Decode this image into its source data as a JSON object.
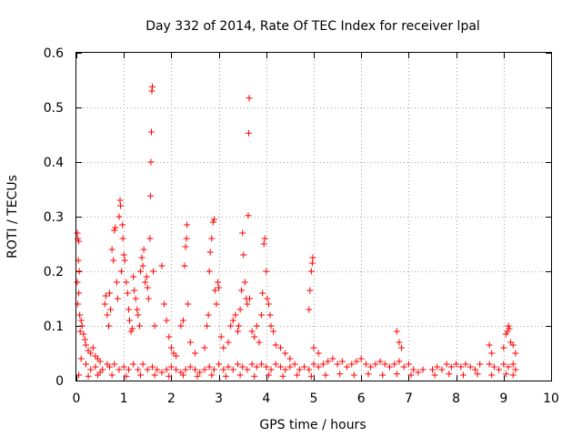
{
  "chart_data": {
    "type": "scatter",
    "title": "Day 332 of 2014, Rate Of TEC Index for receiver lpal",
    "xlabel": "GPS time / hours",
    "ylabel": "ROTI / TECUs",
    "xlim": [
      0,
      10
    ],
    "ylim": [
      0,
      0.6
    ],
    "xticks": [
      0,
      1,
      2,
      3,
      4,
      5,
      6,
      7,
      8,
      9,
      10
    ],
    "yticks": [
      0,
      0.1,
      0.2,
      0.3,
      0.4,
      0.5,
      0.6
    ],
    "xtick_labels": [
      "0",
      "1",
      "2",
      "3",
      "4",
      "5",
      "6",
      "7",
      "8",
      "9",
      "10"
    ],
    "ytick_labels": [
      "0",
      "0.1",
      "0.2",
      "0.3",
      "0.4",
      "0.5",
      "0.6"
    ],
    "grid": true,
    "marker": "+",
    "marker_color": "#ff0000",
    "series": [
      {
        "name": "ROTI",
        "points": [
          [
            0.02,
            0.27
          ],
          [
            0.03,
            0.26
          ],
          [
            0.05,
            0.255
          ],
          [
            0.04,
            0.22
          ],
          [
            0.06,
            0.2
          ],
          [
            0.02,
            0.18
          ],
          [
            0.05,
            0.16
          ],
          [
            0.03,
            0.14
          ],
          [
            0.07,
            0.12
          ],
          [
            0.1,
            0.11
          ],
          [
            0.12,
            0.1
          ],
          [
            0.15,
            0.085
          ],
          [
            0.18,
            0.075
          ],
          [
            0.08,
            0.09
          ],
          [
            0.2,
            0.065
          ],
          [
            0.25,
            0.055
          ],
          [
            0.3,
            0.05
          ],
          [
            0.35,
            0.06
          ],
          [
            0.4,
            0.045
          ],
          [
            0.45,
            0.04
          ],
          [
            0.5,
            0.035
          ],
          [
            0.6,
            0.14
          ],
          [
            0.62,
            0.155
          ],
          [
            0.65,
            0.12
          ],
          [
            0.68,
            0.1
          ],
          [
            0.7,
            0.16
          ],
          [
            0.72,
            0.13
          ],
          [
            0.75,
            0.24
          ],
          [
            0.78,
            0.22
          ],
          [
            0.8,
            0.275
          ],
          [
            0.82,
            0.28
          ],
          [
            0.85,
            0.18
          ],
          [
            0.87,
            0.15
          ],
          [
            0.9,
            0.3
          ],
          [
            0.92,
            0.33
          ],
          [
            0.93,
            0.32
          ],
          [
            0.95,
            0.2
          ],
          [
            0.97,
            0.285
          ],
          [
            0.98,
            0.26
          ],
          [
            1.0,
            0.23
          ],
          [
            1.02,
            0.22
          ],
          [
            1.05,
            0.18
          ],
          [
            1.08,
            0.16
          ],
          [
            1.1,
            0.13
          ],
          [
            1.12,
            0.11
          ],
          [
            1.15,
            0.09
          ],
          [
            1.18,
            0.095
          ],
          [
            1.2,
            0.19
          ],
          [
            1.22,
            0.165
          ],
          [
            1.25,
            0.15
          ],
          [
            1.28,
            0.13
          ],
          [
            1.3,
            0.12
          ],
          [
            1.33,
            0.1
          ],
          [
            1.35,
            0.2
          ],
          [
            1.38,
            0.225
          ],
          [
            1.4,
            0.21
          ],
          [
            1.42,
            0.24
          ],
          [
            1.45,
            0.18
          ],
          [
            1.48,
            0.19
          ],
          [
            1.5,
            0.17
          ],
          [
            1.52,
            0.15
          ],
          [
            1.55,
            0.26
          ],
          [
            1.56,
            0.338
          ],
          [
            1.57,
            0.4
          ],
          [
            1.58,
            0.455
          ],
          [
            1.59,
            0.53
          ],
          [
            1.6,
            0.538
          ],
          [
            1.62,
            0.2
          ],
          [
            1.65,
            0.1
          ],
          [
            1.8,
            0.21
          ],
          [
            1.85,
            0.14
          ],
          [
            1.9,
            0.11
          ],
          [
            1.95,
            0.08
          ],
          [
            2.0,
            0.06
          ],
          [
            2.05,
            0.05
          ],
          [
            2.1,
            0.045
          ],
          [
            2.2,
            0.1
          ],
          [
            2.25,
            0.11
          ],
          [
            2.28,
            0.21
          ],
          [
            2.3,
            0.245
          ],
          [
            2.32,
            0.26
          ],
          [
            2.33,
            0.285
          ],
          [
            2.35,
            0.14
          ],
          [
            2.4,
            0.07
          ],
          [
            2.5,
            0.05
          ],
          [
            2.7,
            0.06
          ],
          [
            2.75,
            0.1
          ],
          [
            2.78,
            0.12
          ],
          [
            2.8,
            0.2
          ],
          [
            2.82,
            0.235
          ],
          [
            2.85,
            0.26
          ],
          [
            2.88,
            0.29
          ],
          [
            2.9,
            0.295
          ],
          [
            2.92,
            0.165
          ],
          [
            2.95,
            0.14
          ],
          [
            2.98,
            0.18
          ],
          [
            3.0,
            0.17
          ],
          [
            3.05,
            0.08
          ],
          [
            3.1,
            0.06
          ],
          [
            3.2,
            0.07
          ],
          [
            3.25,
            0.1
          ],
          [
            3.3,
            0.11
          ],
          [
            3.35,
            0.12
          ],
          [
            3.4,
            0.09
          ],
          [
            3.42,
            0.1
          ],
          [
            3.45,
            0.13
          ],
          [
            3.48,
            0.165
          ],
          [
            3.5,
            0.27
          ],
          [
            3.52,
            0.23
          ],
          [
            3.55,
            0.18
          ],
          [
            3.58,
            0.15
          ],
          [
            3.6,
            0.14
          ],
          [
            3.62,
            0.302
          ],
          [
            3.63,
            0.453
          ],
          [
            3.64,
            0.517
          ],
          [
            3.65,
            0.15
          ],
          [
            3.7,
            0.09
          ],
          [
            3.75,
            0.08
          ],
          [
            3.8,
            0.1
          ],
          [
            3.85,
            0.07
          ],
          [
            3.9,
            0.12
          ],
          [
            3.92,
            0.16
          ],
          [
            3.95,
            0.25
          ],
          [
            3.97,
            0.26
          ],
          [
            4.0,
            0.2
          ],
          [
            4.02,
            0.15
          ],
          [
            4.05,
            0.14
          ],
          [
            4.08,
            0.12
          ],
          [
            4.1,
            0.1
          ],
          [
            4.15,
            0.09
          ],
          [
            4.2,
            0.065
          ],
          [
            4.3,
            0.06
          ],
          [
            4.4,
            0.05
          ],
          [
            4.5,
            0.04
          ],
          [
            4.9,
            0.13
          ],
          [
            4.92,
            0.165
          ],
          [
            4.95,
            0.2
          ],
          [
            4.97,
            0.215
          ],
          [
            4.98,
            0.225
          ],
          [
            5.0,
            0.06
          ],
          [
            5.1,
            0.05
          ],
          [
            6.75,
            0.09
          ],
          [
            6.8,
            0.07
          ],
          [
            6.85,
            0.06
          ],
          [
            8.7,
            0.065
          ],
          [
            8.75,
            0.05
          ],
          [
            9.0,
            0.06
          ],
          [
            9.05,
            0.085
          ],
          [
            9.08,
            0.09
          ],
          [
            9.1,
            0.1
          ],
          [
            9.12,
            0.095
          ],
          [
            9.15,
            0.07
          ],
          [
            9.2,
            0.065
          ],
          [
            9.25,
            0.05
          ],
          [
            0.1,
            0.04
          ],
          [
            0.2,
            0.03
          ],
          [
            0.3,
            0.02
          ],
          [
            0.4,
            0.025
          ],
          [
            0.5,
            0.015
          ],
          [
            0.55,
            0.02
          ],
          [
            0.65,
            0.03
          ],
          [
            0.7,
            0.025
          ],
          [
            0.8,
            0.03
          ],
          [
            0.9,
            0.02
          ],
          [
            1.0,
            0.025
          ],
          [
            1.1,
            0.02
          ],
          [
            1.2,
            0.03
          ],
          [
            1.3,
            0.02
          ],
          [
            1.4,
            0.03
          ],
          [
            1.5,
            0.02
          ],
          [
            1.6,
            0.025
          ],
          [
            1.7,
            0.02
          ],
          [
            1.8,
            0.015
          ],
          [
            1.9,
            0.02
          ],
          [
            2.0,
            0.025
          ],
          [
            2.1,
            0.02
          ],
          [
            2.2,
            0.015
          ],
          [
            2.3,
            0.02
          ],
          [
            2.4,
            0.025
          ],
          [
            2.5,
            0.02
          ],
          [
            2.6,
            0.015
          ],
          [
            2.7,
            0.02
          ],
          [
            2.8,
            0.025
          ],
          [
            2.9,
            0.02
          ],
          [
            3.0,
            0.03
          ],
          [
            3.1,
            0.02
          ],
          [
            3.2,
            0.025
          ],
          [
            3.3,
            0.02
          ],
          [
            3.4,
            0.03
          ],
          [
            3.5,
            0.025
          ],
          [
            3.6,
            0.02
          ],
          [
            3.7,
            0.03
          ],
          [
            3.8,
            0.025
          ],
          [
            3.9,
            0.03
          ],
          [
            4.0,
            0.025
          ],
          [
            4.1,
            0.02
          ],
          [
            4.2,
            0.03
          ],
          [
            4.3,
            0.025
          ],
          [
            4.4,
            0.02
          ],
          [
            4.5,
            0.025
          ],
          [
            4.6,
            0.03
          ],
          [
            4.7,
            0.02
          ],
          [
            4.8,
            0.025
          ],
          [
            4.9,
            0.02
          ],
          [
            5.0,
            0.03
          ],
          [
            5.1,
            0.025
          ],
          [
            5.2,
            0.03
          ],
          [
            5.3,
            0.035
          ],
          [
            5.4,
            0.04
          ],
          [
            5.5,
            0.03
          ],
          [
            5.6,
            0.035
          ],
          [
            5.7,
            0.025
          ],
          [
            5.8,
            0.03
          ],
          [
            5.9,
            0.035
          ],
          [
            6.0,
            0.04
          ],
          [
            6.1,
            0.03
          ],
          [
            6.2,
            0.025
          ],
          [
            6.3,
            0.03
          ],
          [
            6.4,
            0.035
          ],
          [
            6.5,
            0.03
          ],
          [
            6.6,
            0.025
          ],
          [
            6.7,
            0.03
          ],
          [
            6.8,
            0.035
          ],
          [
            6.9,
            0.025
          ],
          [
            7.0,
            0.03
          ],
          [
            7.1,
            0.02
          ],
          [
            7.2,
            0.015
          ],
          [
            7.3,
            0.02
          ],
          [
            7.5,
            0.02
          ],
          [
            7.6,
            0.025
          ],
          [
            7.7,
            0.02
          ],
          [
            7.8,
            0.03
          ],
          [
            7.9,
            0.025
          ],
          [
            8.0,
            0.03
          ],
          [
            8.1,
            0.025
          ],
          [
            8.2,
            0.03
          ],
          [
            8.3,
            0.025
          ],
          [
            8.4,
            0.02
          ],
          [
            8.5,
            0.03
          ],
          [
            8.7,
            0.03
          ],
          [
            8.8,
            0.025
          ],
          [
            8.9,
            0.02
          ],
          [
            9.0,
            0.03
          ],
          [
            9.1,
            0.025
          ],
          [
            9.2,
            0.03
          ],
          [
            9.25,
            0.02
          ],
          [
            0.05,
            0.01
          ],
          [
            0.25,
            0.008
          ],
          [
            0.45,
            0.01
          ],
          [
            0.75,
            0.01
          ],
          [
            1.05,
            0.008
          ],
          [
            1.35,
            0.01
          ],
          [
            1.65,
            0.01
          ],
          [
            1.95,
            0.008
          ],
          [
            2.25,
            0.01
          ],
          [
            2.55,
            0.008
          ],
          [
            2.85,
            0.01
          ],
          [
            3.15,
            0.008
          ],
          [
            3.45,
            0.01
          ],
          [
            3.75,
            0.008
          ],
          [
            4.05,
            0.01
          ],
          [
            4.35,
            0.008
          ],
          [
            4.65,
            0.01
          ],
          [
            4.95,
            0.008
          ],
          [
            5.25,
            0.01
          ],
          [
            5.55,
            0.012
          ],
          [
            5.85,
            0.01
          ],
          [
            6.15,
            0.012
          ],
          [
            6.45,
            0.01
          ],
          [
            6.75,
            0.012
          ],
          [
            7.05,
            0.01
          ],
          [
            7.55,
            0.01
          ],
          [
            7.85,
            0.012
          ],
          [
            8.15,
            0.01
          ],
          [
            8.45,
            0.012
          ],
          [
            8.75,
            0.01
          ],
          [
            9.05,
            0.012
          ],
          [
            9.2,
            0.01
          ]
        ]
      }
    ]
  }
}
